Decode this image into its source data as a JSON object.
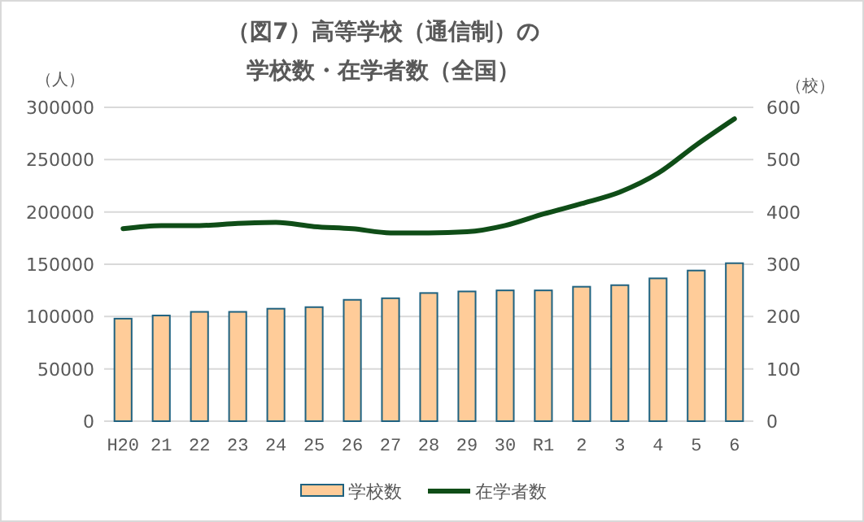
{
  "chart_data": {
    "type": "bar",
    "title": "（図7）高等学校（通信制）の",
    "subtitle": "学校数・在学者数（全国）",
    "ylabel": "（人）",
    "y2label": "（校）",
    "categories": [
      "H20",
      "21",
      "22",
      "23",
      "24",
      "25",
      "26",
      "27",
      "28",
      "29",
      "30",
      "R1",
      "2",
      "3",
      "4",
      "5",
      "6"
    ],
    "series": [
      {
        "name": "学校数",
        "axis": "y2",
        "color": "#ffcc99",
        "values": [
          196,
          202,
          209,
          209,
          215,
          218,
          232,
          235,
          245,
          248,
          250,
          250,
          257,
          260,
          273,
          288,
          302
        ]
      },
      {
        "name": "在学者数",
        "type": "line",
        "axis": "y",
        "color": "#0f4d17",
        "values": [
          184000,
          187000,
          187000,
          189000,
          190000,
          186000,
          184000,
          180000,
          180000,
          181000,
          187000,
          198000,
          208000,
          219000,
          237000,
          264000,
          289000
        ]
      }
    ],
    "ylim": [
      0,
      300000
    ],
    "yticks": [
      0,
      50000,
      100000,
      150000,
      200000,
      250000,
      300000
    ],
    "y2lim": [
      0,
      600
    ],
    "y2ticks": [
      0,
      100,
      200,
      300,
      400,
      500,
      600
    ],
    "grid": "y",
    "legend": "bottom",
    "marker": "none",
    "line_style": "solid"
  }
}
